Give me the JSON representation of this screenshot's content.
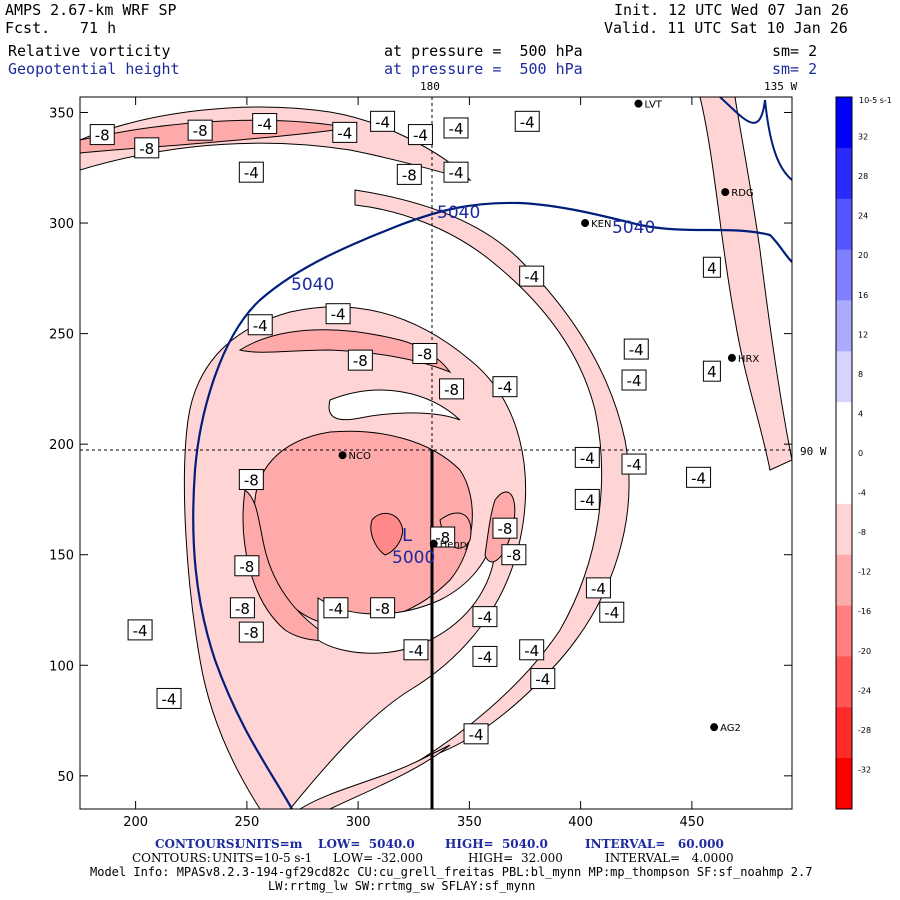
{
  "header": {
    "model": "AMPS 2.67-km WRF SP",
    "forecast_label": "Fcst.",
    "forecast_value": "71 h",
    "init": "Init. 12 UTC Wed 07 Jan 26",
    "valid": "Valid. 11 UTC Sat 10 Jan 26",
    "field1": {
      "name": "Relative vorticity",
      "level": "at pressure =  500 hPa",
      "sm": "sm= 2"
    },
    "field2": {
      "name": "Geopotential height",
      "level": "at pressure =  500 hPa",
      "sm": "sm= 2"
    }
  },
  "map": {
    "meridian_180": "180",
    "meridian_135w": "135 W",
    "parallel_90w": "90 W",
    "low_label": "L",
    "low_value": "5000",
    "stations": [
      {
        "id": "LVT",
        "x": 426,
        "y": 354
      },
      {
        "id": "RDG",
        "x": 465,
        "y": 314
      },
      {
        "id": "KEN",
        "x": 402,
        "y": 300
      },
      {
        "id": "HRX",
        "x": 468,
        "y": 239
      },
      {
        "id": "NCO",
        "x": 293,
        "y": 195
      },
      {
        "id": "Henry",
        "x": 334,
        "y": 155
      },
      {
        "id": "AG2",
        "x": 460,
        "y": 72
      }
    ]
  },
  "colorbar": {
    "unit": "10-5 s-1",
    "colors": [
      "#0000ff",
      "#2a2aff",
      "#5555ff",
      "#7f7fff",
      "#aaaaff",
      "#d4d4ff",
      "#ffffff",
      "#ffffff",
      "#ffd4d4",
      "#ffaaaa",
      "#ff7f7f",
      "#ff5555",
      "#ff2a2a",
      "#ff0000"
    ]
  },
  "chart_data": {
    "type": "contour",
    "x_ticks": [
      200,
      250,
      300,
      350,
      400,
      450
    ],
    "y_ticks": [
      50,
      100,
      150,
      200,
      250,
      300,
      350
    ],
    "xlim": [
      175,
      495
    ],
    "ylim": [
      35,
      357
    ],
    "colorbar_ticks": [
      "32",
      "28",
      "24",
      "20",
      "16",
      "12",
      "8",
      "4",
      "0",
      "-4",
      "-8",
      "-12",
      "-16",
      "-20",
      "-24",
      "-28",
      "-32"
    ],
    "height_contours": {
      "units": "m",
      "low": 5040,
      "high": 5040,
      "interval": 60,
      "labels": [
        "5040",
        "5040",
        "5040"
      ]
    },
    "vorticity_contours": {
      "low": -32,
      "high": 32,
      "interval": 4,
      "shading_levels": [
        -4,
        -8,
        -12
      ]
    },
    "labels": [
      {
        "text": "-8",
        "x": 185,
        "y": 340
      },
      {
        "text": "-8",
        "x": 205,
        "y": 334
      },
      {
        "text": "-8",
        "x": 229,
        "y": 342
      },
      {
        "text": "-4",
        "x": 258,
        "y": 345
      },
      {
        "text": "-4",
        "x": 294,
        "y": 341
      },
      {
        "text": "-4",
        "x": 311,
        "y": 346
      },
      {
        "text": "-4",
        "x": 328,
        "y": 340
      },
      {
        "text": "-4",
        "x": 344,
        "y": 343
      },
      {
        "text": "-4",
        "x": 252,
        "y": 323
      },
      {
        "text": "-8",
        "x": 323,
        "y": 322
      },
      {
        "text": "-4",
        "x": 344,
        "y": 323
      },
      {
        "text": "-4",
        "x": 378,
        "y": 276
      },
      {
        "text": "-4",
        "x": 256,
        "y": 254
      },
      {
        "text": "-4",
        "x": 291,
        "y": 259
      },
      {
        "text": "-8",
        "x": 301,
        "y": 238
      },
      {
        "text": "-8",
        "x": 330,
        "y": 241
      },
      {
        "text": "-4",
        "x": 425,
        "y": 243
      },
      {
        "text": "-4",
        "x": 424,
        "y": 229
      },
      {
        "text": "-8",
        "x": 342,
        "y": 225
      },
      {
        "text": "-4",
        "x": 366,
        "y": 226
      },
      {
        "text": "-4",
        "x": 403,
        "y": 194
      },
      {
        "text": "-4",
        "x": 424,
        "y": 191
      },
      {
        "text": "-4",
        "x": 453,
        "y": 185
      },
      {
        "text": "-4",
        "x": 403,
        "y": 175
      },
      {
        "text": "-8",
        "x": 252,
        "y": 184
      },
      {
        "text": "-8",
        "x": 338,
        "y": 158
      },
      {
        "text": "-8",
        "x": 366,
        "y": 162
      },
      {
        "text": "-8",
        "x": 370,
        "y": 150
      },
      {
        "text": "-8",
        "x": 250,
        "y": 145
      },
      {
        "text": "-4",
        "x": 408,
        "y": 135
      },
      {
        "text": "-4",
        "x": 414,
        "y": 124
      },
      {
        "text": "-8",
        "x": 248,
        "y": 126
      },
      {
        "text": "-4",
        "x": 290,
        "y": 126
      },
      {
        "text": "-8",
        "x": 311,
        "y": 126
      },
      {
        "text": "-4",
        "x": 357,
        "y": 122
      },
      {
        "text": "-8",
        "x": 252,
        "y": 115
      },
      {
        "text": "-4",
        "x": 202,
        "y": 116
      },
      {
        "text": "-4",
        "x": 326,
        "y": 107
      },
      {
        "text": "-4",
        "x": 378,
        "y": 107
      },
      {
        "text": "-4",
        "x": 357,
        "y": 104
      },
      {
        "text": "-4",
        "x": 383,
        "y": 94
      },
      {
        "text": "-4",
        "x": 215,
        "y": 85
      },
      {
        "text": "-4",
        "x": 353,
        "y": 69
      },
      {
        "text": "4",
        "x": 459,
        "y": 280
      },
      {
        "text": "4",
        "x": 459,
        "y": 233
      },
      {
        "text": "-4",
        "x": 376,
        "y": 346
      }
    ]
  },
  "footer": {
    "contours1_label": "CONTOURS:",
    "contours1_units": "UNITS=m",
    "contours1_low": "LOW=  5040.0",
    "contours1_high": "HIGH=  5040.0",
    "contours1_interval": "INTERVAL=   60.000",
    "contours2_label": "CONTOURS:",
    "contours2_units": "UNITS=10-5 s-1",
    "contours2_low": "LOW= -32.000",
    "contours2_high": "HIGH=  32.000",
    "contours2_interval": "INTERVAL=   4.0000",
    "model_info": "Model Info: MPASv8.2.3-194-gf29cd82c CU:cu_grell_freitas PBL:bl_mynn MP:mp_thompson SF:sf_noahmp 2.7",
    "model_info2": "LW:rrtmg_lw SW:rrtmg_sw SFLAY:sf_mynn"
  }
}
